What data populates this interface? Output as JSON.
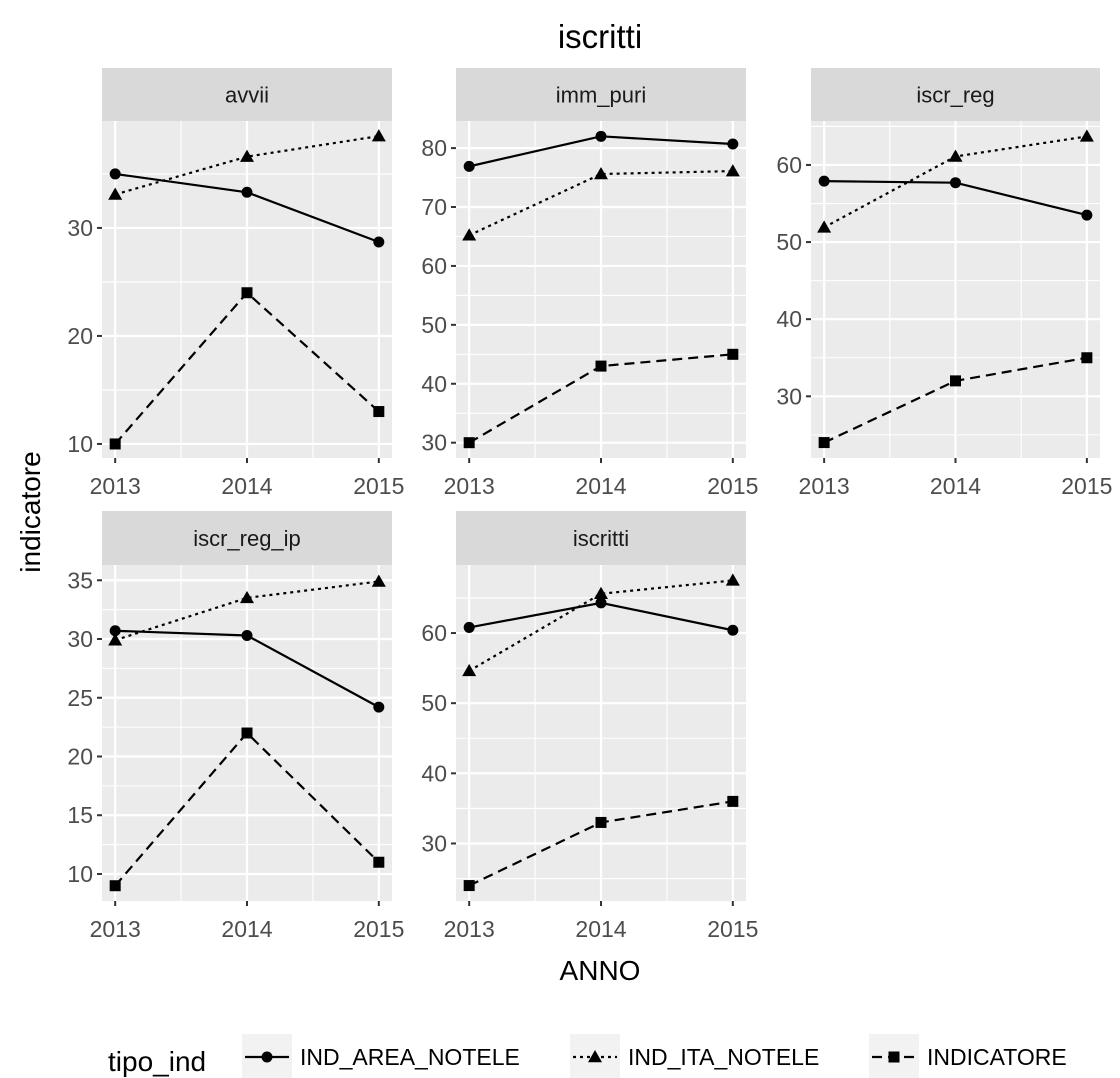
{
  "chart_data": {
    "type": "line",
    "title": "iscritti",
    "xlabel": "ANNO",
    "ylabel": "indicatore",
    "x": [
      2013,
      2014,
      2015
    ],
    "x_ticks": [
      "2013",
      "2014",
      "2015"
    ],
    "grid": true,
    "legend": {
      "title": "tipo_ind",
      "placement": "bottom",
      "entries": [
        {
          "name": "IND_AREA_NOTELE",
          "linetype": "solid",
          "shape": "circle"
        },
        {
          "name": "IND_ITA_NOTELE",
          "linetype": "dotted",
          "shape": "triangle"
        },
        {
          "name": "INDICATORE",
          "linetype": "dashed",
          "shape": "square"
        }
      ]
    },
    "facets": [
      {
        "label": "avvii",
        "ylim": [
          8.7,
          39.9
        ],
        "yticks": [
          10,
          20,
          30
        ],
        "series": [
          {
            "name": "IND_AREA_NOTELE",
            "values": [
              35.0,
              33.3,
              28.7
            ]
          },
          {
            "name": "IND_ITA_NOTELE",
            "values": [
              33.1,
              36.6,
              38.5
            ]
          },
          {
            "name": "INDICATORE",
            "values": [
              10.0,
              24.0,
              13.0
            ]
          }
        ]
      },
      {
        "label": "imm_puri",
        "ylim": [
          27.4,
          84.6
        ],
        "yticks": [
          30,
          40,
          50,
          60,
          70,
          80
        ],
        "series": [
          {
            "name": "IND_AREA_NOTELE",
            "values": [
              76.9,
              82.0,
              80.7
            ]
          },
          {
            "name": "IND_ITA_NOTELE",
            "values": [
              65.2,
              75.6,
              76.1
            ]
          },
          {
            "name": "INDICATORE",
            "values": [
              30.0,
              43.0,
              45.0
            ]
          }
        ]
      },
      {
        "label": "iscr_reg",
        "ylim": [
          22.0,
          65.7
        ],
        "yticks": [
          30,
          40,
          50,
          60
        ],
        "series": [
          {
            "name": "IND_AREA_NOTELE",
            "values": [
              57.9,
              57.7,
              53.5
            ]
          },
          {
            "name": "IND_ITA_NOTELE",
            "values": [
              51.9,
              61.1,
              63.7
            ]
          },
          {
            "name": "INDICATORE",
            "values": [
              24.0,
              32.0,
              35.0
            ]
          }
        ]
      },
      {
        "label": "iscr_reg_ip",
        "ylim": [
          7.7,
          36.3
        ],
        "yticks": [
          10,
          15,
          20,
          25,
          30,
          35
        ],
        "series": [
          {
            "name": "IND_AREA_NOTELE",
            "values": [
              30.7,
              30.3,
              24.2
            ]
          },
          {
            "name": "IND_ITA_NOTELE",
            "values": [
              29.9,
              33.5,
              34.9
            ]
          },
          {
            "name": "INDICATORE",
            "values": [
              9.0,
              22.0,
              11.0
            ]
          }
        ]
      },
      {
        "label": "iscritti",
        "ylim": [
          21.8,
          69.7
        ],
        "yticks": [
          30,
          40,
          50,
          60
        ],
        "series": [
          {
            "name": "IND_AREA_NOTELE",
            "values": [
              60.8,
              64.3,
              60.4
            ]
          },
          {
            "name": "IND_ITA_NOTELE",
            "values": [
              54.6,
              65.6,
              67.5
            ]
          },
          {
            "name": "INDICATORE",
            "values": [
              24.0,
              33.0,
              36.0
            ]
          }
        ]
      }
    ]
  }
}
